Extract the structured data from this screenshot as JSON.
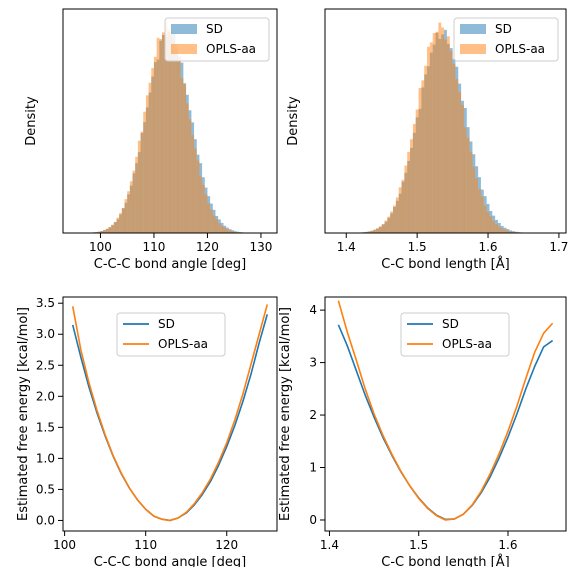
{
  "colors": {
    "sd": "#1f77b4",
    "opls": "#ff7f0e"
  },
  "chart_data": [
    {
      "type": "bar",
      "panel": "top-left",
      "xlabel": "C-C-C bond angle [deg]",
      "ylabel": "Density",
      "xlim": [
        93,
        133
      ],
      "xticks": [
        "100",
        "110",
        "120",
        "130"
      ],
      "legend": [
        "SD",
        "OPLS-aa"
      ],
      "legend_position": "top-right",
      "series": [
        {
          "name": "SD",
          "distribution": "normal",
          "mean": 112.7,
          "sd": 4.1
        },
        {
          "name": "OPLS-aa",
          "distribution": "normal",
          "mean": 112.4,
          "sd": 4.0
        }
      ]
    },
    {
      "type": "bar",
      "panel": "top-right",
      "xlabel": "C-C bond length [Å]",
      "ylabel": "Density",
      "xlim": [
        1.37,
        1.71
      ],
      "xticks": [
        "1.4",
        "1.5",
        "1.6",
        "1.7"
      ],
      "legend": [
        "SD",
        "OPLS-aa"
      ],
      "legend_position": "top-right",
      "series": [
        {
          "name": "SD",
          "distribution": "normal",
          "mean": 1.535,
          "sd": 0.033
        },
        {
          "name": "OPLS-aa",
          "distribution": "normal",
          "mean": 1.532,
          "sd": 0.032
        }
      ]
    },
    {
      "type": "line",
      "panel": "bottom-left",
      "xlabel": "C-C-C bond angle [deg]",
      "ylabel": "Estimated free energy [kcal/mol]",
      "xlim": [
        99.8,
        126.2
      ],
      "ylim": [
        -0.17,
        3.6
      ],
      "xticks": [
        "100",
        "110",
        "120"
      ],
      "yticks": [
        "0.0",
        "0.5",
        "1.0",
        "1.5",
        "2.0",
        "2.5",
        "3.0",
        "3.5"
      ],
      "legend": [
        "SD",
        "OPLS-aa"
      ],
      "legend_position": "top-center",
      "series": [
        {
          "name": "SD",
          "x": [
            101,
            102,
            103,
            104,
            105,
            106,
            107,
            108,
            109,
            110,
            111,
            112,
            113,
            114,
            115,
            116,
            117,
            118,
            119,
            120,
            121,
            122,
            123,
            124,
            125
          ],
          "y": [
            3.15,
            2.63,
            2.15,
            1.73,
            1.36,
            1.03,
            0.75,
            0.52,
            0.33,
            0.18,
            0.07,
            0.02,
            0.0,
            0.04,
            0.12,
            0.25,
            0.42,
            0.63,
            0.89,
            1.19,
            1.53,
            1.92,
            2.36,
            2.86,
            3.32
          ]
        },
        {
          "name": "OPLS-aa",
          "x": [
            101,
            102,
            103,
            104,
            105,
            106,
            107,
            108,
            109,
            110,
            111,
            112,
            113,
            114,
            115,
            116,
            117,
            118,
            119,
            120,
            121,
            122,
            123,
            124,
            125
          ],
          "y": [
            3.45,
            2.75,
            2.22,
            1.77,
            1.38,
            1.04,
            0.76,
            0.52,
            0.33,
            0.18,
            0.07,
            0.02,
            0.0,
            0.04,
            0.13,
            0.27,
            0.45,
            0.67,
            0.94,
            1.25,
            1.62,
            2.04,
            2.52,
            3.0,
            3.48
          ]
        }
      ]
    },
    {
      "type": "line",
      "panel": "bottom-right",
      "xlabel": "C-C bond length [Å]",
      "ylabel": "Estimated free energy [kcal/mol]",
      "xlim": [
        1.395,
        1.665
      ],
      "ylim": [
        -0.21,
        4.25
      ],
      "xticks": [
        "1.4",
        "1.5",
        "1.6"
      ],
      "yticks": [
        "0",
        "1",
        "2",
        "3",
        "4"
      ],
      "legend": [
        "SD",
        "OPLS-aa"
      ],
      "legend_position": "top-center",
      "series": [
        {
          "name": "SD",
          "x": [
            1.41,
            1.42,
            1.43,
            1.44,
            1.45,
            1.46,
            1.47,
            1.48,
            1.49,
            1.5,
            1.51,
            1.52,
            1.53,
            1.54,
            1.55,
            1.56,
            1.57,
            1.58,
            1.59,
            1.6,
            1.61,
            1.62,
            1.63,
            1.64,
            1.65
          ],
          "y": [
            3.72,
            3.32,
            2.85,
            2.38,
            1.96,
            1.57,
            1.23,
            0.92,
            0.65,
            0.42,
            0.23,
            0.09,
            0.01,
            0.02,
            0.11,
            0.28,
            0.52,
            0.82,
            1.18,
            1.58,
            2.02,
            2.5,
            2.93,
            3.3,
            3.42
          ]
        },
        {
          "name": "OPLS-aa",
          "x": [
            1.41,
            1.42,
            1.43,
            1.44,
            1.45,
            1.46,
            1.47,
            1.48,
            1.49,
            1.5,
            1.51,
            1.52,
            1.53,
            1.54,
            1.55,
            1.56,
            1.57,
            1.58,
            1.59,
            1.6,
            1.61,
            1.62,
            1.63,
            1.64,
            1.65
          ],
          "y": [
            4.18,
            3.58,
            3.05,
            2.5,
            2.02,
            1.61,
            1.25,
            0.93,
            0.65,
            0.41,
            0.22,
            0.08,
            0.0,
            0.02,
            0.11,
            0.29,
            0.55,
            0.88,
            1.26,
            1.69,
            2.17,
            2.7,
            3.2,
            3.56,
            3.75
          ]
        }
      ]
    }
  ]
}
